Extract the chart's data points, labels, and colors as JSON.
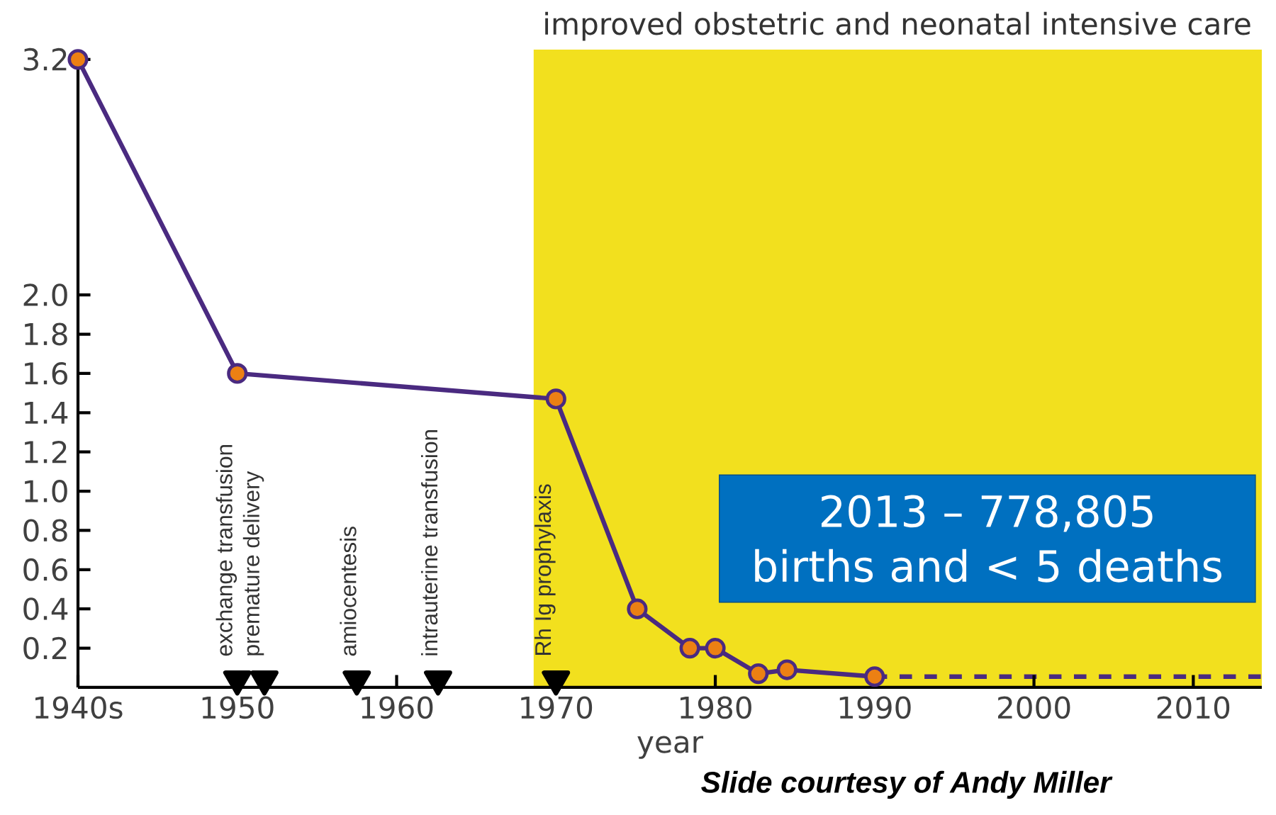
{
  "chart_data": {
    "type": "line",
    "xlabel": "year",
    "x": [
      1940,
      1950,
      1970,
      1975.1,
      1978.4,
      1980,
      1982.7,
      1984.5,
      1990
    ],
    "series": [
      {
        "color": "#4a2a80",
        "values": [
          3.2,
          1.6,
          1.47,
          0.4,
          0.2,
          0.2,
          0.07,
          0.09,
          0.055
        ],
        "marker": "circle",
        "line_style": "solid"
      },
      {
        "color": "#4a2a80",
        "x": [
          1990,
          2014.3
        ],
        "values": [
          0.055,
          0.055
        ],
        "marker": "none",
        "line_style": "dashed"
      },
      {
        "type": "scatter",
        "color": "#000000",
        "x": [
          1950,
          1951.7,
          1957.5,
          1962.6,
          1970
        ],
        "values": [
          0.04,
          0.04,
          0.04,
          0.04,
          0.04
        ],
        "marker": "triangle"
      }
    ],
    "xlim": [
      1940,
      2014.3
    ],
    "ylim": [
      0,
      3.25
    ],
    "xticks": [
      {
        "value": 1940,
        "label": "1940s"
      },
      1950,
      1960,
      1970,
      1980,
      1990,
      2000,
      2010
    ],
    "yticks": [
      0.2,
      0.4,
      0.6,
      0.8,
      {
        "value": 1,
        "label": "1.0"
      },
      1.2,
      1.4,
      1.6,
      1.8,
      {
        "value": 2,
        "label": "2.0"
      },
      3.2
    ],
    "bands": [
      {
        "axis": "x",
        "from": 1968.6,
        "to": 2014.3,
        "label": "improved obstetric and neonatal intensive care",
        "color": "#f2e01e"
      }
    ],
    "annotations": [
      {
        "text": "exchange transfusion",
        "x": 1950,
        "y": 0.04
      },
      {
        "text": "premature delivery",
        "x": 1951.7,
        "y": 0.04
      },
      {
        "text": "amiocentesis",
        "x": 1957.5,
        "y": 0.04
      },
      {
        "text": "intrauterine transfusion",
        "x": 1962.6,
        "y": 0.04
      },
      {
        "text": "Rh Ig prophylaxis",
        "x": 1970,
        "y": 0.04
      },
      "2013 – 778,805 births and < 5 deaths",
      "Slide courtesy of Andy Miller"
    ],
    "grid": false
  }
}
